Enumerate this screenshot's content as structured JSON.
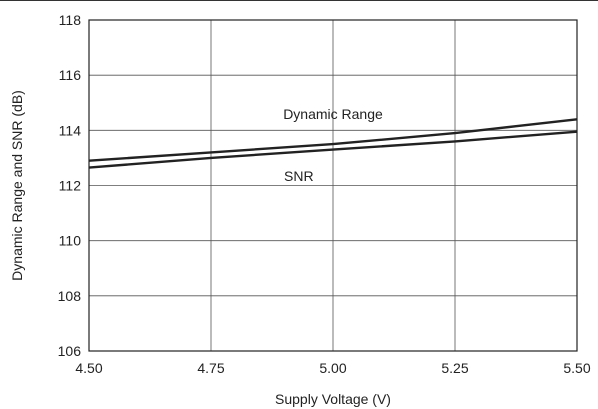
{
  "chart_data": {
    "type": "line",
    "xlabel": "Supply Voltage (V)",
    "ylabel": "Dynamic Range and SNR (dB)",
    "xlim": [
      4.5,
      5.5
    ],
    "ylim": [
      106,
      118
    ],
    "x_ticks": [
      4.5,
      4.75,
      5.0,
      5.25,
      5.5
    ],
    "x_tick_labels": [
      "4.50",
      "4.75",
      "5.00",
      "5.25",
      "5.50"
    ],
    "y_ticks": [
      106,
      108,
      110,
      112,
      114,
      116,
      118
    ],
    "y_tick_labels": [
      "106",
      "108",
      "110",
      "112",
      "114",
      "116",
      "118"
    ],
    "grid": true,
    "series": [
      {
        "name": "Dynamic Range",
        "x": [
          4.5,
          4.75,
          5.0,
          5.25,
          5.5
        ],
        "values": [
          112.9,
          113.2,
          113.5,
          113.9,
          114.4
        ]
      },
      {
        "name": "SNR",
        "x": [
          4.5,
          4.75,
          5.0,
          5.25,
          5.5
        ],
        "values": [
          112.65,
          113.0,
          113.3,
          113.6,
          113.95
        ]
      }
    ],
    "annotations": [
      {
        "text": "Dynamic Range",
        "x": 5.0,
        "y": 114.6
      },
      {
        "text": "SNR",
        "x": 4.93,
        "y": 112.35
      }
    ],
    "line_color": "#222222",
    "grid_color": "#555555"
  }
}
